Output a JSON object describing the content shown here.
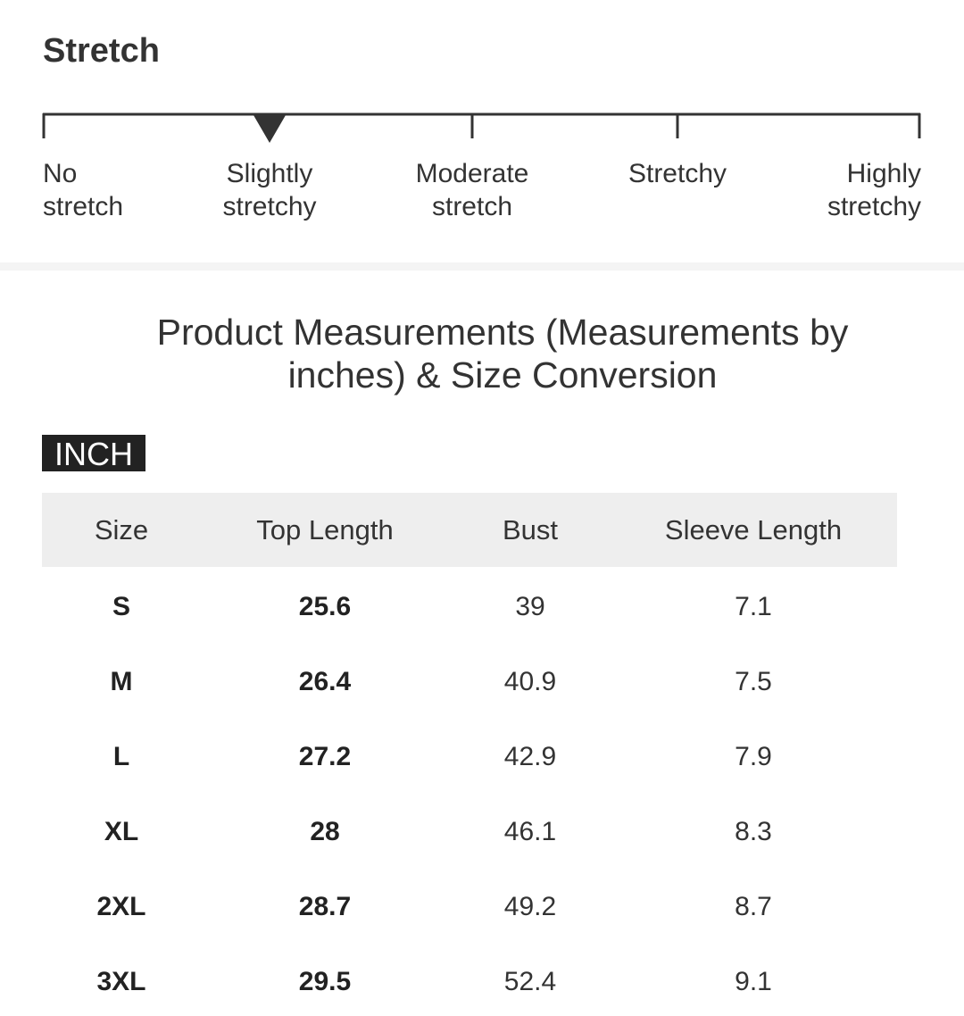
{
  "stretch": {
    "title": "Stretch",
    "levels": [
      [
        "No",
        "stretch"
      ],
      [
        "Slightly",
        "stretchy"
      ],
      [
        "Moderate",
        "stretch"
      ],
      [
        "Stretchy"
      ],
      [
        "Highly",
        "stretchy"
      ]
    ]
  },
  "measurements": {
    "title": [
      "Product Measurements (Measurements by",
      "inches) & Size Conversion"
    ],
    "unit": "INCH",
    "table": {
      "header": [
        "Size",
        "Top Length",
        "Bust",
        "Sleeve Length"
      ],
      "rows": [
        [
          "S",
          "25.6",
          "39",
          "7.1"
        ],
        [
          "M",
          "26.4",
          "40.9",
          "7.5"
        ],
        [
          "L",
          "27.2",
          "42.9",
          "7.9"
        ],
        [
          "XL",
          "28",
          "46.1",
          "8.3"
        ],
        [
          "2XL",
          "28.7",
          "49.2",
          "8.7"
        ],
        [
          "3XL",
          "29.5",
          "52.4",
          "9.1"
        ]
      ]
    }
  }
}
